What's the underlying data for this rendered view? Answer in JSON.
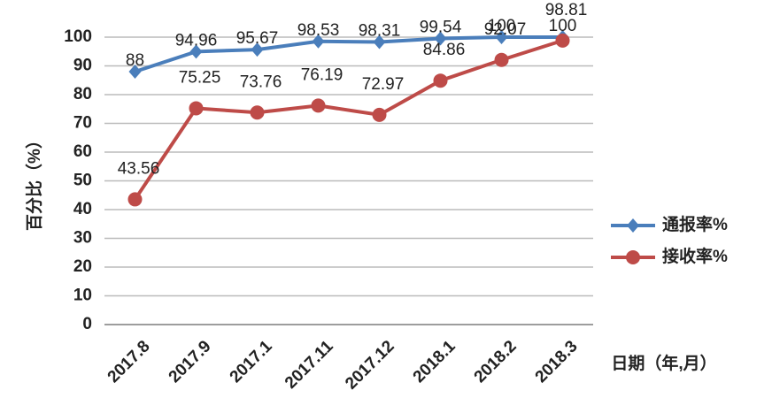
{
  "chart_data": {
    "type": "line",
    "categories": [
      "2017.8",
      "2017.9",
      "2017.1",
      "2017.11",
      "2017.12",
      "2018.1",
      "2018.2",
      "2018.3"
    ],
    "series": [
      {
        "name": "通报率%",
        "color": "#4a7ebb",
        "marker": "diamond",
        "values": [
          88,
          94.96,
          95.67,
          98.53,
          98.31,
          99.54,
          100,
          100
        ]
      },
      {
        "name": "接收率%",
        "color": "#be4b48",
        "marker": "circle",
        "values": [
          43.56,
          75.25,
          73.76,
          76.19,
          72.97,
          84.86,
          92.07,
          98.81
        ]
      }
    ],
    "y_label": "百分比（%）",
    "x_label": "日期（年,月）",
    "ylim": [
      0,
      100
    ],
    "yticks": [
      0,
      10,
      20,
      30,
      40,
      50,
      60,
      70,
      80,
      90,
      100
    ],
    "grid": true,
    "legend": "right"
  }
}
